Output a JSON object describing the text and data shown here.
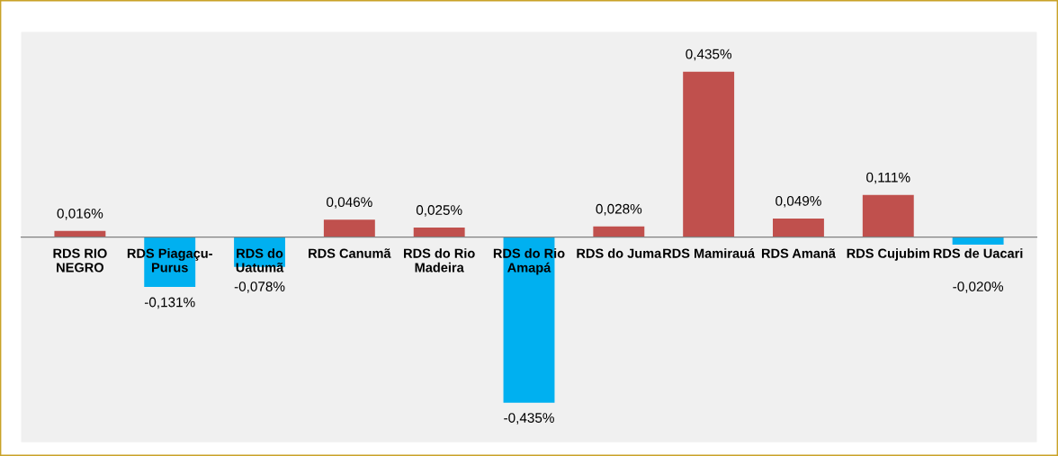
{
  "chart_data": {
    "type": "bar",
    "categories": [
      "RDS RIO\nNEGRO",
      "RDS Piagaçu-\nPurus",
      "RDS do\nUatumã",
      "RDS Canumã",
      "RDS do Rio\nMadeira",
      "RDS do Rio\nAmapá",
      "RDS do Juma",
      "RDS Mamirauá",
      "RDS Amanã",
      "RDS Cujubim",
      "RDS de Uacari"
    ],
    "values": [
      0.016,
      -0.131,
      -0.078,
      0.046,
      0.025,
      -0.435,
      0.028,
      0.435,
      0.049,
      0.111,
      -0.02
    ],
    "colors": [
      "#c0504d",
      "#00b0f0",
      "#00b0f0",
      "#c0504d",
      "#c0504d",
      "#00b0f0",
      "#c0504d",
      "#c0504d",
      "#c0504d",
      "#c0504d",
      "#00b0f0"
    ],
    "value_labels": [
      "0,016%",
      "-0,131%",
      "-0,078%",
      "0,046%",
      "0,025%",
      "-0,435%",
      "0,028%",
      "0,435%",
      "0,049%",
      "0,111%",
      "-0,020%"
    ],
    "grid": false,
    "legend": false
  }
}
